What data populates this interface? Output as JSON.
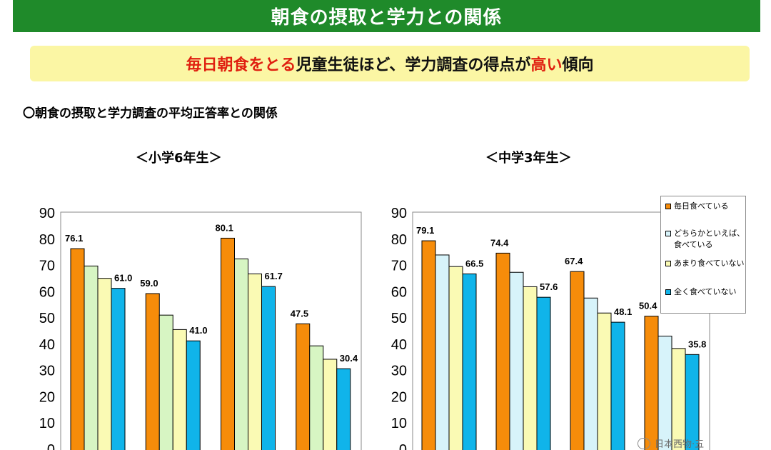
{
  "header": {
    "title": "朝食の摂取と学力との関係"
  },
  "banner": {
    "part1": "毎日朝食をとる",
    "part2": "児童生徒ほど、学力調査の得点が",
    "part3": "高い",
    "part4": "傾向"
  },
  "section": {
    "heading": "〇朝食の摂取と学力調査の平均正答率との関係"
  },
  "watermark": {
    "text": "日本西物·五"
  },
  "colors": {
    "orange": "#f68c0a",
    "light_green": "#d7f5c3",
    "light_blue": "#d7f3fa",
    "light_yellow": "#fafab4",
    "cyan": "#10b4ea"
  },
  "legend": {
    "items": [
      {
        "label": "毎日食べている",
        "color": "#f68c0a"
      },
      {
        "label": "どちらかといえば、食べている",
        "color": "#d7f3fa"
      },
      {
        "label": "あまり食べていない",
        "color": "#fafab4"
      },
      {
        "label": "全く食べていない",
        "color": "#10b4ea"
      }
    ]
  },
  "chart_data": [
    {
      "type": "bar",
      "title": "＜小学6年生＞",
      "ylim": [
        0,
        90
      ],
      "yticks": [
        0,
        10,
        20,
        30,
        40,
        50,
        60,
        70,
        80,
        90
      ],
      "series_colors": [
        "#f68c0a",
        "#d7f5c3",
        "#fafab4",
        "#10b4ea"
      ],
      "groups": [
        {
          "values": [
            76.1,
            69.5,
            64.8,
            61.0
          ],
          "labels": [
            "76.1",
            "",
            "",
            "61.0"
          ]
        },
        {
          "values": [
            59.0,
            50.8,
            45.3,
            41.0
          ],
          "labels": [
            "59.0",
            "",
            "",
            "41.0"
          ]
        },
        {
          "values": [
            80.1,
            72.2,
            66.5,
            61.7
          ],
          "labels": [
            "80.1",
            "",
            "",
            "61.7"
          ]
        },
        {
          "values": [
            47.5,
            39.1,
            34.0,
            30.4
          ],
          "labels": [
            "47.5",
            "",
            "",
            "30.4"
          ]
        }
      ]
    },
    {
      "type": "bar",
      "title": "＜中学3年生＞",
      "ylim": [
        0,
        90
      ],
      "yticks": [
        0,
        10,
        20,
        30,
        40,
        50,
        60,
        70,
        80,
        90
      ],
      "series_colors": [
        "#f68c0a",
        "#d7f3fa",
        "#fafab4",
        "#10b4ea"
      ],
      "groups": [
        {
          "values": [
            79.1,
            73.7,
            69.3,
            66.5
          ],
          "labels": [
            "79.1",
            "",
            "",
            "66.5"
          ]
        },
        {
          "values": [
            74.4,
            67.1,
            61.6,
            57.6
          ],
          "labels": [
            "74.4",
            "",
            "",
            "57.6"
          ]
        },
        {
          "values": [
            67.4,
            57.3,
            51.6,
            48.1
          ],
          "labels": [
            "67.4",
            "",
            "",
            "48.1"
          ]
        },
        {
          "values": [
            50.4,
            42.8,
            38.1,
            35.8
          ],
          "labels": [
            "50.4",
            "",
            "",
            "35.8"
          ]
        }
      ]
    }
  ]
}
